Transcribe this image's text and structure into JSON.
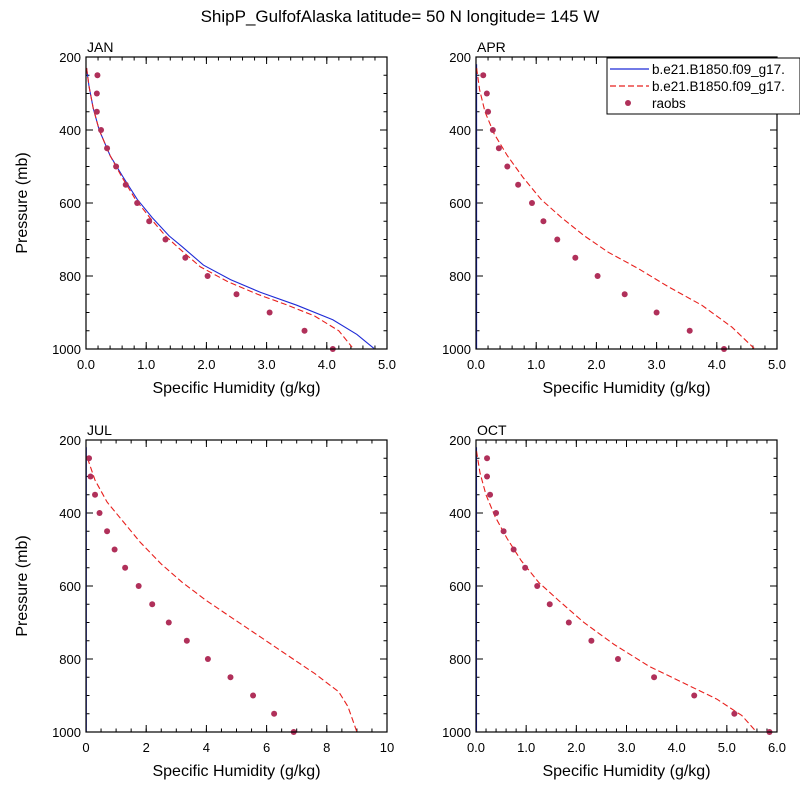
{
  "title": "ShipP_GulfofAlaska  latitude= 50 N longitude= 145 W",
  "colors": {
    "model_a": "#1f2bd6",
    "model_b": "#e8201d",
    "raobs": "#b0305a"
  },
  "legend": {
    "entries": [
      {
        "label": "b.e21.B1850.f09_g17.",
        "style": "solid-line",
        "color": "#1f2bd6"
      },
      {
        "label": "b.e21.B1850.f09_g17.",
        "style": "dashed-line",
        "color": "#e8201d"
      },
      {
        "label": "raobs",
        "style": "dot",
        "color": "#b0305a"
      }
    ],
    "placement": "top-right of APR panel"
  },
  "chart_data": [
    {
      "type": "line",
      "panel": "JAN",
      "xlabel": "Specific Humidity (g/kg)",
      "ylabel": "Pressure (mb)",
      "xlim": [
        0,
        5
      ],
      "ylim": [
        1000,
        200
      ],
      "y_inverted": true,
      "xticks": [
        "0.0",
        "1.0",
        "2.0",
        "3.0",
        "4.0",
        "5.0"
      ],
      "xtick_values": [
        0,
        1,
        2,
        3,
        4,
        5
      ],
      "yticks": [
        "200",
        "400",
        "600",
        "800",
        "1000"
      ],
      "ytick_values": [
        200,
        400,
        600,
        800,
        1000
      ],
      "series": [
        {
          "name": "b.e21.B1850.f09_g17.",
          "style": "solid",
          "x": [
            0.01,
            0.05,
            0.12,
            0.22,
            0.4,
            0.62,
            0.85,
            1.1,
            1.38,
            1.6,
            1.95,
            2.4,
            2.9,
            3.5,
            4.1,
            4.5,
            4.78
          ],
          "y": [
            230,
            280,
            340,
            400,
            470,
            530,
            590,
            640,
            690,
            720,
            770,
            810,
            845,
            880,
            920,
            960,
            998
          ]
        },
        {
          "name": "b.e21.B1850.f09_g17.",
          "style": "dashed",
          "x": [
            0.01,
            0.05,
            0.12,
            0.22,
            0.4,
            0.6,
            0.82,
            1.06,
            1.32,
            1.55,
            1.9,
            2.35,
            2.85,
            3.35,
            3.8,
            4.2,
            4.42
          ],
          "y": [
            230,
            280,
            340,
            400,
            470,
            530,
            590,
            640,
            690,
            725,
            775,
            815,
            850,
            880,
            910,
            950,
            995
          ]
        },
        {
          "name": "raobs",
          "style": "dots",
          "x": [
            0.19,
            0.18,
            0.18,
            0.25,
            0.35,
            0.5,
            0.66,
            0.85,
            1.05,
            1.32,
            1.65,
            2.02,
            2.5,
            3.05,
            3.63,
            4.1
          ],
          "y": [
            250,
            300,
            350,
            400,
            450,
            500,
            550,
            600,
            650,
            700,
            750,
            800,
            850,
            900,
            950,
            1000
          ]
        }
      ]
    },
    {
      "type": "line",
      "panel": "APR",
      "xlabel": "Specific Humidity (g/kg)",
      "ylabel": "",
      "xlim": [
        0,
        5
      ],
      "ylim": [
        1000,
        200
      ],
      "y_inverted": true,
      "xticks": [
        "0.0",
        "1.0",
        "2.0",
        "3.0",
        "4.0",
        "5.0"
      ],
      "xtick_values": [
        0,
        1,
        2,
        3,
        4,
        5
      ],
      "yticks": [
        "200",
        "400",
        "600",
        "800",
        "1000"
      ],
      "ytick_values": [
        200,
        400,
        600,
        800,
        1000
      ],
      "series": [
        {
          "name": "b.e21.B1850.f09_g17.",
          "style": "solid",
          "x": [
            0.01,
            0.01,
            0.01,
            0.01,
            0.01
          ],
          "y": [
            220,
            400,
            600,
            800,
            1000
          ]
        },
        {
          "name": "b.e21.B1850.f09_g17.",
          "style": "dashed",
          "x": [
            0.01,
            0.06,
            0.15,
            0.3,
            0.52,
            0.78,
            1.08,
            1.42,
            1.8,
            2.2,
            2.7,
            3.2,
            3.75,
            4.25,
            4.62
          ],
          "y": [
            230,
            290,
            350,
            410,
            470,
            530,
            590,
            640,
            690,
            735,
            780,
            830,
            880,
            940,
            998
          ]
        },
        {
          "name": "raobs",
          "style": "dots",
          "x": [
            0.12,
            0.18,
            0.2,
            0.28,
            0.38,
            0.52,
            0.7,
            0.93,
            1.12,
            1.35,
            1.65,
            2.02,
            2.47,
            3.0,
            3.55,
            4.12
          ],
          "y": [
            250,
            300,
            350,
            400,
            450,
            500,
            550,
            600,
            650,
            700,
            750,
            800,
            850,
            900,
            950,
            1000
          ]
        }
      ]
    },
    {
      "type": "line",
      "panel": "JUL",
      "xlabel": "Specific Humidity (g/kg)",
      "ylabel": "Pressure (mb)",
      "xlim": [
        0,
        10
      ],
      "ylim": [
        1000,
        200
      ],
      "y_inverted": true,
      "xticks": [
        "0",
        "2",
        "4",
        "6",
        "8",
        "10"
      ],
      "xtick_values": [
        0,
        2,
        4,
        6,
        8,
        10
      ],
      "yticks": [
        "200",
        "400",
        "600",
        "800",
        "1000"
      ],
      "ytick_values": [
        200,
        400,
        600,
        800,
        1000
      ],
      "series": [
        {
          "name": "b.e21.B1850.f09_g17.",
          "style": "solid",
          "x": [
            0.01,
            0.01,
            0.01,
            0.01,
            0.01
          ],
          "y": [
            220,
            400,
            600,
            800,
            1000
          ]
        },
        {
          "name": "b.e21.B1850.f09_g17.",
          "style": "dashed",
          "x": [
            0.05,
            0.3,
            0.7,
            1.2,
            1.8,
            2.5,
            3.2,
            4.0,
            4.9,
            5.8,
            6.7,
            7.6,
            8.4,
            8.7,
            8.85,
            9.0
          ],
          "y": [
            250,
            310,
            370,
            420,
            480,
            540,
            590,
            640,
            690,
            740,
            790,
            840,
            890,
            930,
            965,
            1000
          ]
        },
        {
          "name": "raobs",
          "style": "dots",
          "x": [
            0.1,
            0.15,
            0.3,
            0.45,
            0.7,
            0.95,
            1.3,
            1.75,
            2.2,
            2.75,
            3.35,
            4.05,
            4.8,
            5.55,
            6.25,
            6.9
          ],
          "y": [
            250,
            300,
            350,
            400,
            450,
            500,
            550,
            600,
            650,
            700,
            750,
            800,
            850,
            900,
            950,
            1000
          ]
        }
      ]
    },
    {
      "type": "line",
      "panel": "OCT",
      "xlabel": "Specific Humidity (g/kg)",
      "ylabel": "",
      "xlim": [
        0,
        6
      ],
      "ylim": [
        1000,
        200
      ],
      "y_inverted": true,
      "xticks": [
        "0.0",
        "1.0",
        "2.0",
        "3.0",
        "4.0",
        "5.0",
        "6.0"
      ],
      "xtick_values": [
        0,
        1,
        2,
        3,
        4,
        5,
        6
      ],
      "yticks": [
        "200",
        "400",
        "600",
        "800",
        "1000"
      ],
      "ytick_values": [
        200,
        400,
        600,
        800,
        1000
      ],
      "series": [
        {
          "name": "b.e21.B1850.f09_g17.",
          "style": "solid",
          "x": [
            0.01,
            0.01,
            0.01,
            0.01,
            0.01
          ],
          "y": [
            220,
            400,
            600,
            800,
            1000
          ]
        },
        {
          "name": "b.e21.B1850.f09_g17.",
          "style": "dashed",
          "x": [
            0.01,
            0.08,
            0.2,
            0.38,
            0.62,
            0.9,
            1.25,
            1.65,
            2.15,
            2.75,
            3.45,
            4.2,
            4.8,
            5.3,
            5.58
          ],
          "y": [
            230,
            290,
            350,
            410,
            470,
            530,
            590,
            640,
            700,
            760,
            820,
            870,
            910,
            955,
            998
          ]
        },
        {
          "name": "raobs",
          "style": "dots",
          "x": [
            0.22,
            0.22,
            0.28,
            0.4,
            0.55,
            0.75,
            0.98,
            1.22,
            1.47,
            1.85,
            2.3,
            2.83,
            3.55,
            4.35,
            5.15,
            5.85
          ],
          "y": [
            250,
            300,
            350,
            400,
            450,
            500,
            550,
            600,
            650,
            700,
            750,
            800,
            850,
            900,
            950,
            1000
          ]
        }
      ]
    }
  ]
}
